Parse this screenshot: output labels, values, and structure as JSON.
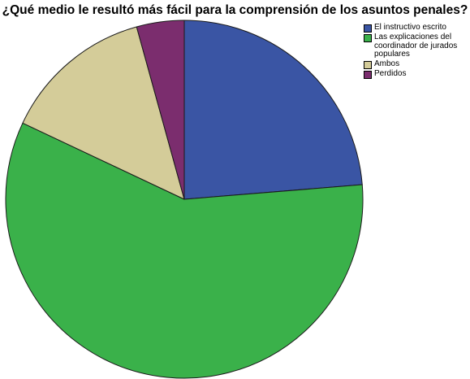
{
  "chart_data": {
    "type": "pie",
    "title": "¿Qué medio le resultó más fácil para la comprensión de los asuntos penales?",
    "categories": [
      "El instructivo escrito",
      "Las explicaciones del coordinador de jurados populares",
      "Ambos",
      "Perdidos"
    ],
    "values": [
      23.7,
      58.3,
      13.7,
      4.3
    ],
    "colors": [
      "#3a55a4",
      "#3ab14a",
      "#d4cc99",
      "#7b2d6e"
    ],
    "start_angle_deg": 0,
    "direction": "clockwise",
    "legend_position": "top-right"
  }
}
